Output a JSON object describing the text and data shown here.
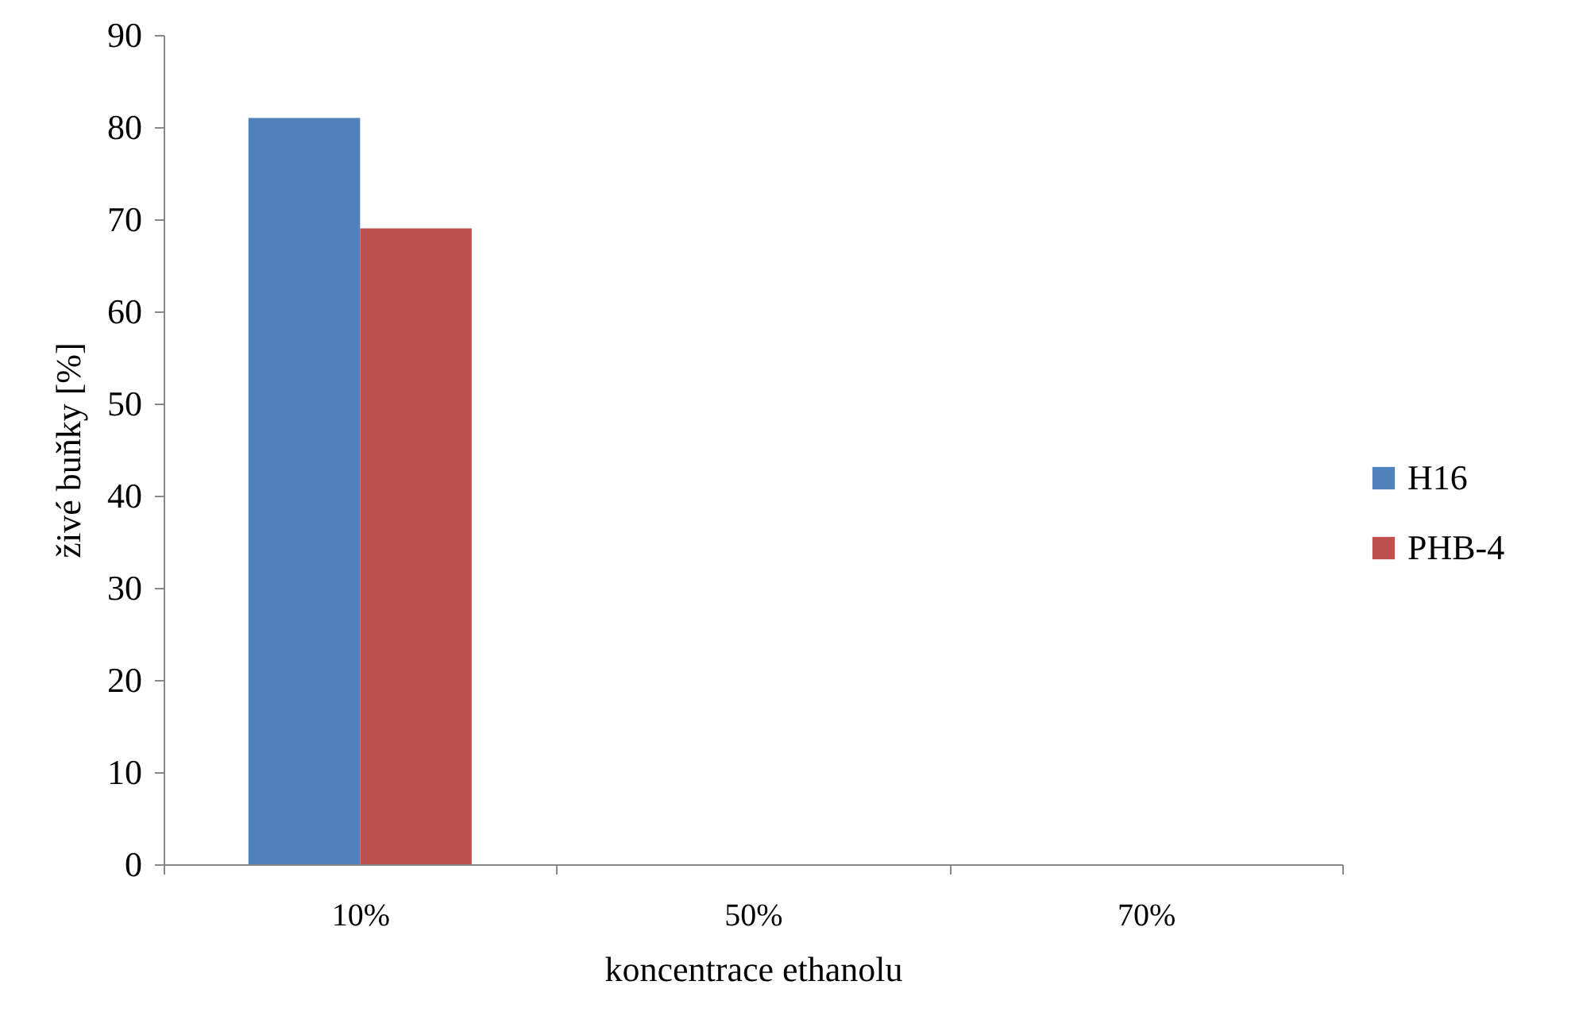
{
  "chart_data": {
    "type": "bar",
    "xlabel": "koncentrace ethanolu",
    "ylabel": "živé buňky [%]",
    "categories": [
      "10%",
      "50%",
      "70%"
    ],
    "series": [
      {
        "name": "H16",
        "color": "#4f81bd",
        "values": [
          81,
          0,
          0
        ]
      },
      {
        "name": "PHB-4",
        "color": "#c0504d",
        "values": [
          69,
          0,
          0
        ]
      }
    ],
    "ylim": [
      0,
      90
    ],
    "yticks": [
      0,
      10,
      20,
      30,
      40,
      50,
      60,
      70,
      80,
      90
    ],
    "legend": "right"
  }
}
